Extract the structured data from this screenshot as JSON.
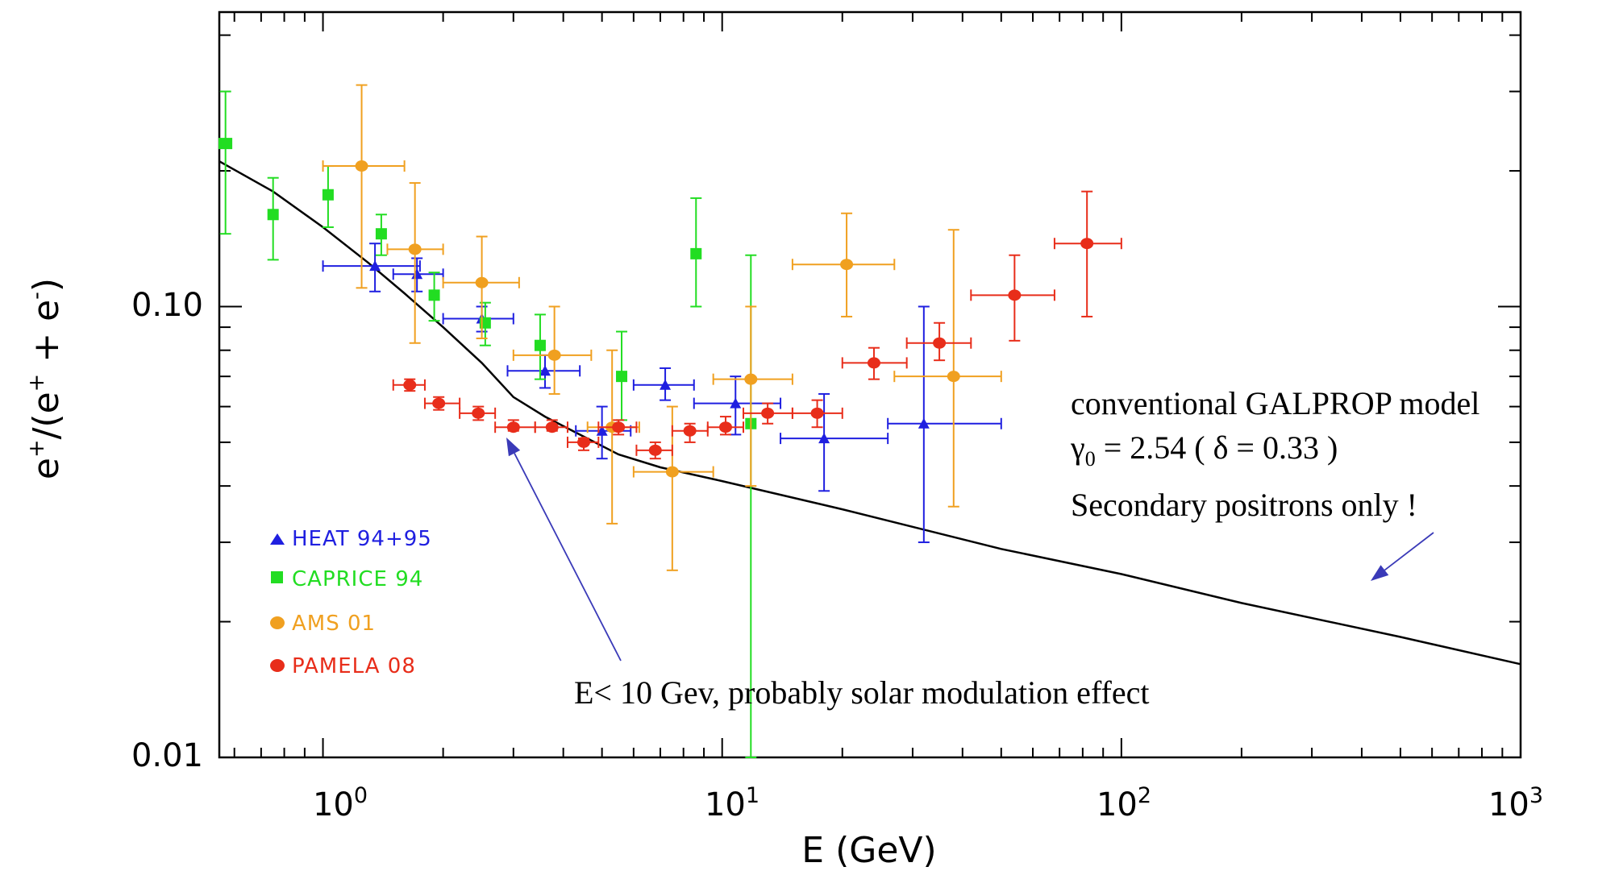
{
  "chart_data": {
    "type": "scatter",
    "x_scale": "log",
    "y_scale": "log",
    "xlim": [
      0.55,
      1000
    ],
    "ylim": [
      0.01,
      0.45
    ],
    "x_tick_bases": [
      "10",
      "10",
      "10",
      "10"
    ],
    "x_tick_exps": [
      "0",
      "1",
      "2",
      "3"
    ],
    "x_tick_values": [
      1,
      10,
      100,
      1000
    ],
    "y_tick_labels": [
      "0.01",
      "0.10"
    ],
    "y_tick_values": [
      0.01,
      0.1
    ],
    "xlabel": "E  (GeV)",
    "ylabel_parts": [
      "e",
      "+",
      "/(e",
      "+",
      " + e",
      "-",
      ")"
    ],
    "grid": false,
    "legend_position": "bottom-left",
    "series": [
      {
        "name": "HEAT 94+95",
        "color": "#1f1fe0",
        "marker": "triangle",
        "points": [
          {
            "x": 1.35,
            "y": 0.123,
            "xlo": 1.0,
            "xhi": 1.75,
            "ylo": 0.108,
            "yhi": 0.138
          },
          {
            "x": 1.72,
            "y": 0.118,
            "xlo": 1.5,
            "xhi": 2.0,
            "ylo": 0.108,
            "yhi": 0.128
          },
          {
            "x": 2.5,
            "y": 0.094,
            "xlo": 2.0,
            "xhi": 3.0,
            "ylo": 0.088,
            "yhi": 0.1
          },
          {
            "x": 3.6,
            "y": 0.072,
            "xlo": 2.9,
            "xhi": 4.4,
            "ylo": 0.066,
            "yhi": 0.078
          },
          {
            "x": 5.0,
            "y": 0.053,
            "xlo": 4.3,
            "xhi": 5.9,
            "ylo": 0.046,
            "yhi": 0.06
          },
          {
            "x": 7.2,
            "y": 0.067,
            "xlo": 6.0,
            "xhi": 8.5,
            "ylo": 0.062,
            "yhi": 0.073
          },
          {
            "x": 10.8,
            "y": 0.061,
            "xlo": 8.5,
            "xhi": 14.0,
            "ylo": 0.052,
            "yhi": 0.07
          },
          {
            "x": 18.0,
            "y": 0.051,
            "xlo": 14.0,
            "xhi": 26.0,
            "ylo": 0.039,
            "yhi": 0.064
          },
          {
            "x": 32.0,
            "y": 0.055,
            "xlo": 26.0,
            "xhi": 50.0,
            "ylo": 0.03,
            "yhi": 0.1
          }
        ]
      },
      {
        "name": "CAPRICE 94",
        "color": "#22dd22",
        "marker": "square",
        "points": [
          {
            "x": 0.57,
            "y": 0.23,
            "xlo": 0.55,
            "xhi": 0.59,
            "ylo": 0.145,
            "yhi": 0.3
          },
          {
            "x": 0.75,
            "y": 0.16,
            "xlo": 0.75,
            "xhi": 0.75,
            "ylo": 0.127,
            "yhi": 0.193
          },
          {
            "x": 1.03,
            "y": 0.177,
            "xlo": 1.03,
            "xhi": 1.03,
            "ylo": 0.15,
            "yhi": 0.205
          },
          {
            "x": 1.4,
            "y": 0.145,
            "xlo": 1.4,
            "xhi": 1.4,
            "ylo": 0.13,
            "yhi": 0.16
          },
          {
            "x": 1.9,
            "y": 0.106,
            "xlo": 1.9,
            "xhi": 1.9,
            "ylo": 0.093,
            "yhi": 0.119
          },
          {
            "x": 2.55,
            "y": 0.092,
            "xlo": 2.55,
            "xhi": 2.55,
            "ylo": 0.082,
            "yhi": 0.102
          },
          {
            "x": 3.5,
            "y": 0.082,
            "xlo": 3.5,
            "xhi": 3.5,
            "ylo": 0.069,
            "yhi": 0.096
          },
          {
            "x": 5.6,
            "y": 0.07,
            "xlo": 5.6,
            "xhi": 5.6,
            "ylo": 0.056,
            "yhi": 0.088
          },
          {
            "x": 8.6,
            "y": 0.131,
            "xlo": 8.6,
            "xhi": 8.6,
            "ylo": 0.1,
            "yhi": 0.174
          },
          {
            "x": 11.8,
            "y": 0.055,
            "xlo": 11.8,
            "xhi": 11.8,
            "ylo": 0.01,
            "yhi": 0.13
          }
        ]
      },
      {
        "name": "AMS 01",
        "color": "#f0a020",
        "marker": "circle",
        "points": [
          {
            "x": 1.25,
            "y": 0.205,
            "xlo": 1.0,
            "xhi": 1.6,
            "ylo": 0.11,
            "yhi": 0.31
          },
          {
            "x": 1.7,
            "y": 0.134,
            "xlo": 1.45,
            "xhi": 2.0,
            "ylo": 0.083,
            "yhi": 0.188
          },
          {
            "x": 2.5,
            "y": 0.113,
            "xlo": 2.0,
            "xhi": 3.1,
            "ylo": 0.085,
            "yhi": 0.143
          },
          {
            "x": 3.8,
            "y": 0.078,
            "xlo": 3.0,
            "xhi": 4.7,
            "ylo": 0.064,
            "yhi": 0.1
          },
          {
            "x": 5.3,
            "y": 0.054,
            "xlo": 4.6,
            "xhi": 6.2,
            "ylo": 0.033,
            "yhi": 0.08
          },
          {
            "x": 7.5,
            "y": 0.043,
            "xlo": 6.0,
            "xhi": 9.5,
            "ylo": 0.026,
            "yhi": 0.06
          },
          {
            "x": 11.8,
            "y": 0.069,
            "xlo": 9.5,
            "xhi": 15.0,
            "ylo": 0.04,
            "yhi": 0.1
          },
          {
            "x": 20.5,
            "y": 0.124,
            "xlo": 15.0,
            "xhi": 27.0,
            "ylo": 0.095,
            "yhi": 0.161
          },
          {
            "x": 38.0,
            "y": 0.07,
            "xlo": 27.0,
            "xhi": 50.0,
            "ylo": 0.036,
            "yhi": 0.148
          }
        ]
      },
      {
        "name": "PAMELA 08",
        "color": "#e82d1a",
        "marker": "circle",
        "points": [
          {
            "x": 1.65,
            "y": 0.067,
            "xlo": 1.5,
            "xhi": 1.8,
            "ylo": 0.065,
            "yhi": 0.069
          },
          {
            "x": 1.95,
            "y": 0.061,
            "xlo": 1.8,
            "xhi": 2.2,
            "ylo": 0.059,
            "yhi": 0.063
          },
          {
            "x": 2.45,
            "y": 0.058,
            "xlo": 2.2,
            "xhi": 2.7,
            "ylo": 0.056,
            "yhi": 0.06
          },
          {
            "x": 3.0,
            "y": 0.054,
            "xlo": 2.7,
            "xhi": 3.4,
            "ylo": 0.053,
            "yhi": 0.056
          },
          {
            "x": 3.75,
            "y": 0.054,
            "xlo": 3.4,
            "xhi": 4.1,
            "ylo": 0.053,
            "yhi": 0.056
          },
          {
            "x": 4.5,
            "y": 0.05,
            "xlo": 4.1,
            "xhi": 4.9,
            "ylo": 0.048,
            "yhi": 0.051
          },
          {
            "x": 5.5,
            "y": 0.054,
            "xlo": 4.9,
            "xhi": 6.1,
            "ylo": 0.052,
            "yhi": 0.056
          },
          {
            "x": 6.8,
            "y": 0.048,
            "xlo": 6.1,
            "xhi": 7.5,
            "ylo": 0.046,
            "yhi": 0.05
          },
          {
            "x": 8.3,
            "y": 0.053,
            "xlo": 7.5,
            "xhi": 9.2,
            "ylo": 0.05,
            "yhi": 0.055
          },
          {
            "x": 10.2,
            "y": 0.054,
            "xlo": 9.2,
            "xhi": 11.3,
            "ylo": 0.052,
            "yhi": 0.057
          },
          {
            "x": 13.0,
            "y": 0.058,
            "xlo": 11.3,
            "xhi": 15.0,
            "ylo": 0.055,
            "yhi": 0.061
          },
          {
            "x": 17.3,
            "y": 0.058,
            "xlo": 15.0,
            "xhi": 20.0,
            "ylo": 0.054,
            "yhi": 0.062
          },
          {
            "x": 24.0,
            "y": 0.075,
            "xlo": 20.0,
            "xhi": 29.0,
            "ylo": 0.069,
            "yhi": 0.081
          },
          {
            "x": 35.0,
            "y": 0.083,
            "xlo": 29.0,
            "xhi": 42.0,
            "ylo": 0.076,
            "yhi": 0.092
          },
          {
            "x": 54.0,
            "y": 0.106,
            "xlo": 42.0,
            "xhi": 68.0,
            "ylo": 0.084,
            "yhi": 0.13
          },
          {
            "x": 82.0,
            "y": 0.138,
            "xlo": 68.0,
            "xhi": 100.0,
            "ylo": 0.095,
            "yhi": 0.18
          }
        ]
      }
    ],
    "model_curve": {
      "color": "#000000",
      "points": [
        [
          0.55,
          0.21
        ],
        [
          0.75,
          0.18
        ],
        [
          1.0,
          0.15
        ],
        [
          1.3,
          0.125
        ],
        [
          1.6,
          0.107
        ],
        [
          2.0,
          0.09
        ],
        [
          2.5,
          0.075
        ],
        [
          3.0,
          0.063
        ],
        [
          3.6,
          0.057
        ],
        [
          4.4,
          0.052
        ],
        [
          5.5,
          0.047
        ],
        [
          7.0,
          0.044
        ],
        [
          10.0,
          0.041
        ],
        [
          20.0,
          0.0355
        ],
        [
          50.0,
          0.029
        ],
        [
          100.0,
          0.0255
        ],
        [
          200.0,
          0.022
        ],
        [
          500.0,
          0.0185
        ],
        [
          1000.0,
          0.0161
        ]
      ]
    },
    "annotations": {
      "model_line1": "conventional GALPROP model",
      "model_gamma": "γ",
      "model_gamma_sub": "0",
      "model_line2_rest": " = 2.54 ( δ = 0.33 )",
      "model_line3": "Secondary positrons only !",
      "low_energy_note": "E< 10 Gev, probably solar modulation effect",
      "arrow_color": "#3a3ab8"
    }
  }
}
